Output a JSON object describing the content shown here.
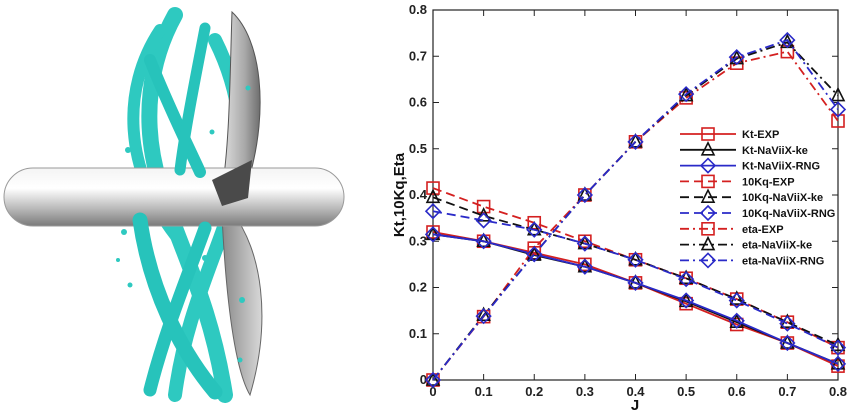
{
  "illustration": {
    "description_icon": "propeller-vortex-isosurface"
  },
  "chart_data": {
    "type": "line",
    "title": "",
    "xlabel": "J",
    "ylabel": "Kt,10Kq,Eta",
    "xlim": [
      0,
      0.8
    ],
    "ylim": [
      0,
      0.8
    ],
    "xticks": [
      0,
      0.1,
      0.2,
      0.3,
      0.4,
      0.5,
      0.6,
      0.7,
      0.8
    ],
    "yticks": [
      0,
      0.1,
      0.2,
      0.3,
      0.4,
      0.5,
      0.6,
      0.7,
      0.8
    ],
    "xtick_labels": [
      "0",
      "0.1",
      "0.2",
      "0.3",
      "0.4",
      "0.5",
      "0.6",
      "0.7",
      "0.8"
    ],
    "ytick_labels": [
      "0",
      "0.1",
      "0.2",
      "0.3",
      "0.4",
      "0.5",
      "0.6",
      "0.7",
      "0.8"
    ],
    "grid": false,
    "legend_position": "right",
    "series": [
      {
        "name": "Kt-EXP",
        "color": "#d42020",
        "dash": "solid",
        "marker": "square",
        "x": [
          0,
          0.1,
          0.2,
          0.3,
          0.4,
          0.5,
          0.6,
          0.7,
          0.8
        ],
        "y": [
          0.32,
          0.3,
          0.275,
          0.25,
          0.21,
          0.165,
          0.12,
          0.08,
          0.03
        ]
      },
      {
        "name": "Kt-NaViiX-ke",
        "color": "#111111",
        "dash": "solid",
        "marker": "triangle",
        "x": [
          0,
          0.1,
          0.2,
          0.3,
          0.4,
          0.5,
          0.6,
          0.7,
          0.8
        ],
        "y": [
          0.315,
          0.3,
          0.27,
          0.245,
          0.21,
          0.17,
          0.125,
          0.08,
          0.035
        ]
      },
      {
        "name": "Kt-NaViiX-RNG",
        "color": "#2a2ac8",
        "dash": "solid",
        "marker": "diamond",
        "x": [
          0,
          0.1,
          0.2,
          0.3,
          0.4,
          0.5,
          0.6,
          0.7,
          0.8
        ],
        "y": [
          0.315,
          0.3,
          0.272,
          0.245,
          0.21,
          0.172,
          0.128,
          0.08,
          0.035
        ]
      },
      {
        "name": "10Kq-EXP",
        "color": "#d42020",
        "dash": "dash",
        "marker": "square",
        "x": [
          0,
          0.1,
          0.2,
          0.3,
          0.4,
          0.5,
          0.6,
          0.7,
          0.8
        ],
        "y": [
          0.415,
          0.375,
          0.34,
          0.3,
          0.26,
          0.22,
          0.175,
          0.125,
          0.07
        ]
      },
      {
        "name": "10Kq-NaViiX-ke",
        "color": "#111111",
        "dash": "dash",
        "marker": "triangle",
        "x": [
          0,
          0.1,
          0.2,
          0.3,
          0.4,
          0.5,
          0.6,
          0.7,
          0.8
        ],
        "y": [
          0.395,
          0.355,
          0.325,
          0.295,
          0.26,
          0.22,
          0.175,
          0.125,
          0.075
        ]
      },
      {
        "name": "10Kq-NaViiX-RNG",
        "color": "#2a2ac8",
        "dash": "dash",
        "marker": "diamond",
        "x": [
          0,
          0.1,
          0.2,
          0.3,
          0.4,
          0.5,
          0.6,
          0.7,
          0.8
        ],
        "y": [
          0.365,
          0.345,
          0.325,
          0.295,
          0.26,
          0.218,
          0.172,
          0.122,
          0.07
        ]
      },
      {
        "name": "eta-EXP",
        "color": "#d42020",
        "dash": "dashdot",
        "marker": "square",
        "x": [
          0,
          0.1,
          0.2,
          0.3,
          0.4,
          0.5,
          0.6,
          0.7,
          0.8
        ],
        "y": [
          0,
          0.137,
          0.285,
          0.4,
          0.515,
          0.61,
          0.685,
          0.71,
          0.56
        ]
      },
      {
        "name": "eta-NaViiX-ke",
        "color": "#111111",
        "dash": "dashdot",
        "marker": "triangle",
        "x": [
          0,
          0.1,
          0.2,
          0.3,
          0.4,
          0.5,
          0.6,
          0.7,
          0.8
        ],
        "y": [
          0,
          0.14,
          0.272,
          0.4,
          0.515,
          0.615,
          0.695,
          0.73,
          0.615
        ]
      },
      {
        "name": "eta-NaViiX-RNG",
        "color": "#2a2ac8",
        "dash": "dashdot",
        "marker": "diamond",
        "x": [
          0,
          0.1,
          0.2,
          0.3,
          0.4,
          0.5,
          0.6,
          0.7,
          0.8
        ],
        "y": [
          0,
          0.138,
          0.272,
          0.4,
          0.515,
          0.618,
          0.698,
          0.735,
          0.585
        ]
      }
    ]
  }
}
